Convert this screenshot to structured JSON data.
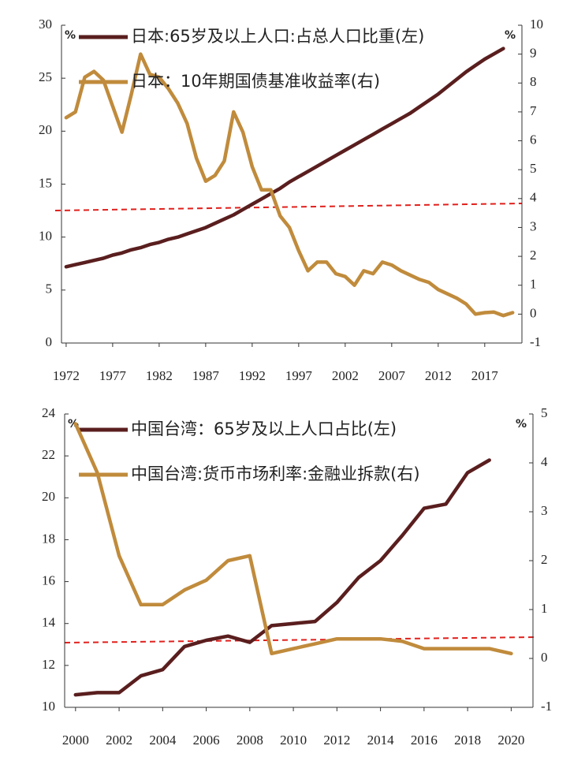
{
  "chart_data": [
    {
      "type": "line",
      "x": [
        1972,
        1973,
        1974,
        1975,
        1976,
        1977,
        1978,
        1979,
        1980,
        1981,
        1982,
        1983,
        1984,
        1985,
        1986,
        1987,
        1988,
        1989,
        1990,
        1991,
        1992,
        1993,
        1994,
        1995,
        1996,
        1997,
        1998,
        1999,
        2000,
        2001,
        2002,
        2003,
        2004,
        2005,
        2006,
        2007,
        2008,
        2009,
        2010,
        2011,
        2012,
        2013,
        2014,
        2015,
        2016,
        2017,
        2018,
        2019,
        2020
      ],
      "xlim": [
        1971.5,
        2021
      ],
      "xticks": [
        1972,
        1977,
        1982,
        1987,
        1992,
        1997,
        2002,
        2007,
        2012,
        2017
      ],
      "ylim": [
        0,
        30
      ],
      "yticks": [
        0,
        5,
        10,
        15,
        20,
        25,
        30
      ],
      "y2lim": [
        -1,
        10
      ],
      "y2ticks": [
        -1,
        0,
        1,
        2,
        3,
        4,
        5,
        6,
        7,
        8,
        9,
        10
      ],
      "ylabel": "%",
      "y2label": "%",
      "series": [
        {
          "name": "日本:65岁及以上人口:占总人口比重(左)",
          "color": "#5a1e1e",
          "axis": "y",
          "values": [
            7.2,
            7.4,
            7.6,
            7.8,
            8.0,
            8.3,
            8.5,
            8.8,
            9.0,
            9.3,
            9.5,
            9.8,
            10.0,
            10.3,
            10.6,
            10.9,
            11.3,
            11.7,
            12.1,
            12.6,
            13.1,
            13.6,
            14.1,
            14.6,
            15.2,
            15.7,
            16.2,
            16.7,
            17.2,
            17.7,
            18.2,
            18.7,
            19.2,
            19.7,
            20.2,
            20.7,
            21.2,
            21.7,
            22.3,
            22.9,
            23.5,
            24.2,
            24.9,
            25.6,
            26.2,
            26.8,
            27.3,
            27.8,
            null
          ]
        },
        {
          "name": "日本：10年期国债基准收益率(右)",
          "color": "#c08b3c",
          "axis": "y2",
          "values": [
            6.8,
            7.0,
            8.2,
            8.4,
            8.1,
            7.2,
            6.3,
            7.6,
            9.0,
            8.3,
            8.2,
            7.8,
            7.3,
            6.6,
            5.4,
            4.6,
            4.8,
            5.3,
            7.0,
            6.3,
            5.1,
            4.3,
            4.3,
            3.4,
            3.0,
            2.2,
            1.5,
            1.8,
            1.8,
            1.4,
            1.3,
            1.0,
            1.5,
            1.4,
            1.8,
            1.7,
            1.5,
            1.35,
            1.2,
            1.1,
            0.85,
            0.7,
            0.55,
            0.35,
            0.0,
            0.05,
            0.07,
            -0.05,
            0.05
          ]
        }
      ]
    },
    {
      "type": "line",
      "x": [
        2000,
        2001,
        2002,
        2003,
        2004,
        2005,
        2006,
        2007,
        2008,
        2009,
        2010,
        2011,
        2012,
        2013,
        2014,
        2015,
        2016,
        2017,
        2018,
        2019,
        2020
      ],
      "xlim": [
        1999.5,
        2021
      ],
      "xticks": [
        2000,
        2002,
        2004,
        2006,
        2008,
        2010,
        2012,
        2014,
        2016,
        2018,
        2020
      ],
      "ylim": [
        10,
        24
      ],
      "yticks": [
        10,
        12,
        14,
        16,
        18,
        20,
        22,
        24
      ],
      "y2lim": [
        -1,
        5
      ],
      "y2ticks": [
        -1,
        0,
        1,
        2,
        3,
        4,
        5
      ],
      "ylabel": "%",
      "y2label": "%",
      "series": [
        {
          "name": "中国台湾：65岁及以上人口占比(左)",
          "color": "#5a1e1e",
          "axis": "y",
          "values": [
            10.6,
            10.7,
            10.7,
            11.5,
            11.8,
            12.9,
            13.2,
            13.4,
            13.1,
            13.9,
            14.0,
            14.1,
            15.0,
            16.2,
            17.0,
            18.2,
            19.5,
            19.7,
            21.2,
            21.8,
            null
          ]
        },
        {
          "name": "中国台湾:货币市场利率:金融业拆款(右)",
          "color": "#c08b3c",
          "axis": "y2",
          "values": [
            4.8,
            3.8,
            2.1,
            1.1,
            1.1,
            1.4,
            1.6,
            2.0,
            2.1,
            0.1,
            0.2,
            0.3,
            0.4,
            0.4,
            0.4,
            0.35,
            0.2,
            0.2,
            0.2,
            0.2,
            0.1
          ]
        }
      ]
    }
  ]
}
